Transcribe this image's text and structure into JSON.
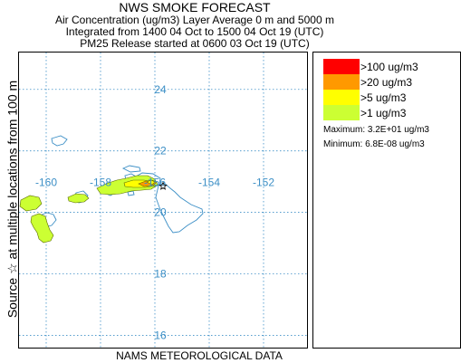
{
  "header": {
    "title": "NWS SMOKE FORECAST",
    "line1": "Air Concentration (ug/m3) Layer Average    0 m and  5000 m",
    "line2": "Integrated from 1400 04 Oct to 1500 04 Oct 19 (UTC)",
    "line3": "PM25 Release started at 0600 03 Oct 19 (UTC)"
  },
  "side_label": "Source ☆   at multiple locations    from  100 m",
  "footer": "NAMS METEOROLOGICAL DATA",
  "map": {
    "lon_range": [
      -161.0,
      -150.4
    ],
    "lat_range": [
      15.6,
      25.2
    ],
    "lon_ticks": [
      -160,
      -158,
      -156,
      -154,
      -152
    ],
    "lat_ticks": [
      24,
      22,
      20,
      18,
      16
    ],
    "lon_tick_labels": [
      "-160",
      "-158",
      "-156",
      "-154",
      "-152"
    ],
    "lat_tick_labels": [
      "24",
      "22",
      "20",
      "18",
      "16"
    ],
    "grid": true,
    "grid_color": "#3c8fc6",
    "coast_color": "#3c8fc6",
    "source_marker": {
      "lon": -155.7,
      "lat": 20.85,
      "symbol": "star"
    }
  },
  "legend": {
    "items": [
      {
        "label": ">100 ug/m3",
        "color": "#ff0000"
      },
      {
        "label": ">20 ug/m3",
        "color": "#ff9900"
      },
      {
        "label": ">5 ug/m3",
        "color": "#ffff00"
      },
      {
        "label": ">1 ug/m3",
        "color": "#ccff33"
      }
    ],
    "maximum": "Maximum: 3.2E+01 ug/m3",
    "minimum": "Minimum: 6.8E-08 ug/m3"
  }
}
